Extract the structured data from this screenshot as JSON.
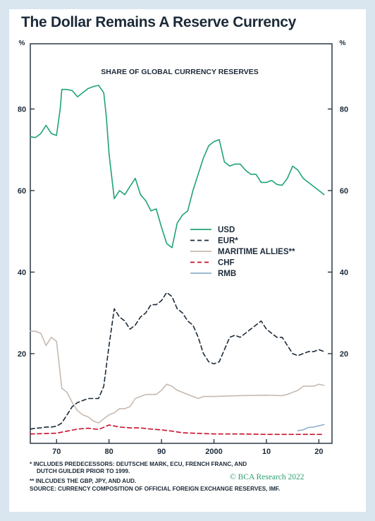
{
  "page": {
    "title": "The Dollar Remains A Reserve Currency"
  },
  "footnotes": {
    "line1": "* INCLUDES PREDECESSORS: DEUTSCHE MARK, ECU, FRENCH FRANC, AND",
    "line2": "DUTCH GUILDER PRIOR TO 1999.",
    "line3": "** INLCUDES THE GBP, JPY, AND AUD.",
    "line4": "SOURCE: CURRENCY COMPOSITION OF OFFICIAL FOREIGN EXCHANGE RESERVES, IMF."
  },
  "credit": "© BCA Research 2022",
  "chart_data": {
    "type": "line",
    "title": "SHARE OF GLOBAL CURRENCY RESERVES",
    "ylabel_left": "%",
    "ylabel_right": "%",
    "xlim": [
      1965,
      2022.5
    ],
    "ylim": [
      -2,
      96
    ],
    "yticks": [
      20,
      40,
      60,
      80
    ],
    "xticks": [
      {
        "value": 1970,
        "label": "70"
      },
      {
        "value": 1980,
        "label": "80"
      },
      {
        "value": 1990,
        "label": "90"
      },
      {
        "value": 2000,
        "label": "2000"
      },
      {
        "value": 2010,
        "label": "10"
      },
      {
        "value": 2020,
        "label": "20"
      }
    ],
    "grid": false,
    "legend_position": "center-right",
    "series": [
      {
        "name": "USD",
        "color": "#1fa374",
        "dash": "solid",
        "points": [
          [
            1965,
            73.2
          ],
          [
            1966,
            73
          ],
          [
            1967,
            74
          ],
          [
            1968,
            76
          ],
          [
            1969,
            74
          ],
          [
            1970,
            73.5
          ],
          [
            1970.7,
            80
          ],
          [
            1971,
            84.8
          ],
          [
            1972,
            84.8
          ],
          [
            1973,
            84.5
          ],
          [
            1974,
            83
          ],
          [
            1975,
            84
          ],
          [
            1976,
            85
          ],
          [
            1977,
            85.5
          ],
          [
            1978,
            85.8
          ],
          [
            1979,
            84
          ],
          [
            1979.5,
            78
          ],
          [
            1980,
            69
          ],
          [
            1981,
            58
          ],
          [
            1982,
            60
          ],
          [
            1983,
            59
          ],
          [
            1984,
            61
          ],
          [
            1985,
            63
          ],
          [
            1986,
            59
          ],
          [
            1987,
            57.5
          ],
          [
            1988,
            55
          ],
          [
            1989,
            55.5
          ],
          [
            1990,
            51
          ],
          [
            1991,
            47
          ],
          [
            1992,
            46
          ],
          [
            1993,
            52
          ],
          [
            1994,
            54
          ],
          [
            1995,
            55
          ],
          [
            1996,
            60
          ],
          [
            1997,
            64
          ],
          [
            1998,
            68
          ],
          [
            1999,
            71
          ],
          [
            2000,
            72
          ],
          [
            2001,
            72.5
          ],
          [
            2002,
            67
          ],
          [
            2003,
            66
          ],
          [
            2004,
            66.5
          ],
          [
            2005,
            66.5
          ],
          [
            2006,
            65
          ],
          [
            2007,
            64
          ],
          [
            2008,
            64
          ],
          [
            2009,
            62
          ],
          [
            2010,
            62
          ],
          [
            2011,
            62.5
          ],
          [
            2012,
            61.5
          ],
          [
            2013,
            61.3
          ],
          [
            2014,
            63
          ],
          [
            2015,
            66
          ],
          [
            2016,
            65
          ],
          [
            2017,
            63
          ],
          [
            2018,
            62
          ],
          [
            2019,
            61
          ],
          [
            2020,
            60
          ],
          [
            2021,
            59
          ]
        ]
      },
      {
        "name": "EUR*",
        "color": "#1c2a38",
        "dash": "dashed",
        "points": [
          [
            1965,
            1.5
          ],
          [
            1966,
            1.7
          ],
          [
            1967,
            1.8
          ],
          [
            1968,
            2
          ],
          [
            1969,
            2
          ],
          [
            1970,
            2.2
          ],
          [
            1971,
            3
          ],
          [
            1972,
            5
          ],
          [
            1973,
            7
          ],
          [
            1974,
            8
          ],
          [
            1975,
            8.5
          ],
          [
            1976,
            9
          ],
          [
            1977,
            9
          ],
          [
            1978,
            9
          ],
          [
            1979,
            12
          ],
          [
            1980,
            22
          ],
          [
            1981,
            31
          ],
          [
            1982,
            29
          ],
          [
            1983,
            28
          ],
          [
            1984,
            26
          ],
          [
            1985,
            27
          ],
          [
            1986,
            29
          ],
          [
            1987,
            30
          ],
          [
            1988,
            32
          ],
          [
            1989,
            32
          ],
          [
            1990,
            33
          ],
          [
            1991,
            35
          ],
          [
            1992,
            34
          ],
          [
            1993,
            31
          ],
          [
            1994,
            30
          ],
          [
            1995,
            28
          ],
          [
            1996,
            27
          ],
          [
            1997,
            24
          ],
          [
            1998,
            20
          ],
          [
            1999,
            18
          ],
          [
            2000,
            17.5
          ],
          [
            2001,
            18
          ],
          [
            2002,
            21
          ],
          [
            2003,
            24
          ],
          [
            2004,
            24.5
          ],
          [
            2005,
            24
          ],
          [
            2006,
            25
          ],
          [
            2007,
            26
          ],
          [
            2008,
            27
          ],
          [
            2009,
            28
          ],
          [
            2010,
            26
          ],
          [
            2011,
            25
          ],
          [
            2012,
            24
          ],
          [
            2013,
            24
          ],
          [
            2014,
            22
          ],
          [
            2015,
            20
          ],
          [
            2016,
            19.5
          ],
          [
            2017,
            20
          ],
          [
            2018,
            20.5
          ],
          [
            2019,
            20.5
          ],
          [
            2020,
            21
          ],
          [
            2021,
            20.5
          ]
        ]
      },
      {
        "name": "MARITIME ALLIES**",
        "color": "#c7bab0",
        "dash": "solid",
        "points": [
          [
            1965,
            25.5
          ],
          [
            1966,
            25.5
          ],
          [
            1967,
            25
          ],
          [
            1968,
            22
          ],
          [
            1969,
            24
          ],
          [
            1970,
            23
          ],
          [
            1971,
            11.5
          ],
          [
            1972,
            10.5
          ],
          [
            1973,
            8
          ],
          [
            1974,
            6
          ],
          [
            1975,
            5
          ],
          [
            1976,
            4.5
          ],
          [
            1977,
            3.5
          ],
          [
            1978,
            3
          ],
          [
            1979,
            4
          ],
          [
            1980,
            5
          ],
          [
            1981,
            5.5
          ],
          [
            1982,
            6.5
          ],
          [
            1983,
            6.5
          ],
          [
            1984,
            7
          ],
          [
            1985,
            9
          ],
          [
            1986,
            9.5
          ],
          [
            1987,
            10
          ],
          [
            1988,
            10
          ],
          [
            1989,
            10
          ],
          [
            1990,
            11
          ],
          [
            1991,
            12.5
          ],
          [
            1992,
            12
          ],
          [
            1993,
            11
          ],
          [
            1994,
            10.5
          ],
          [
            1995,
            10
          ],
          [
            1996,
            9.5
          ],
          [
            1997,
            9
          ],
          [
            1998,
            9.5
          ],
          [
            1999,
            9.5
          ],
          [
            2000,
            9.5
          ],
          [
            2005,
            9.7
          ],
          [
            2010,
            9.8
          ],
          [
            2013,
            9.7
          ],
          [
            2014,
            10
          ],
          [
            2015,
            10.5
          ],
          [
            2016,
            11
          ],
          [
            2017,
            12
          ],
          [
            2018,
            12
          ],
          [
            2019,
            12
          ],
          [
            2020,
            12.5
          ],
          [
            2021,
            12.2
          ]
        ]
      },
      {
        "name": "CHF",
        "color": "#c8102e",
        "dash": "dashed",
        "points": [
          [
            1965,
            0.3
          ],
          [
            1968,
            0.4
          ],
          [
            1970,
            0.5
          ],
          [
            1972,
            1
          ],
          [
            1974,
            1.5
          ],
          [
            1976,
            1.7
          ],
          [
            1978,
            1.4
          ],
          [
            1980,
            2.5
          ],
          [
            1982,
            2
          ],
          [
            1984,
            1.8
          ],
          [
            1986,
            1.8
          ],
          [
            1988,
            1.5
          ],
          [
            1990,
            1.3
          ],
          [
            1992,
            1
          ],
          [
            1994,
            0.6
          ],
          [
            1996,
            0.5
          ],
          [
            1998,
            0.4
          ],
          [
            2000,
            0.3
          ],
          [
            2005,
            0.3
          ],
          [
            2010,
            0.2
          ],
          [
            2015,
            0.2
          ],
          [
            2021,
            0.2
          ]
        ]
      },
      {
        "name": "RMB",
        "color": "#8fb0ca",
        "dash": "solid",
        "points": [
          [
            2016,
            1.1
          ],
          [
            2017,
            1.3
          ],
          [
            2018,
            1.9
          ],
          [
            2019,
            2
          ],
          [
            2020,
            2.3
          ],
          [
            2021,
            2.6
          ]
        ]
      }
    ]
  }
}
